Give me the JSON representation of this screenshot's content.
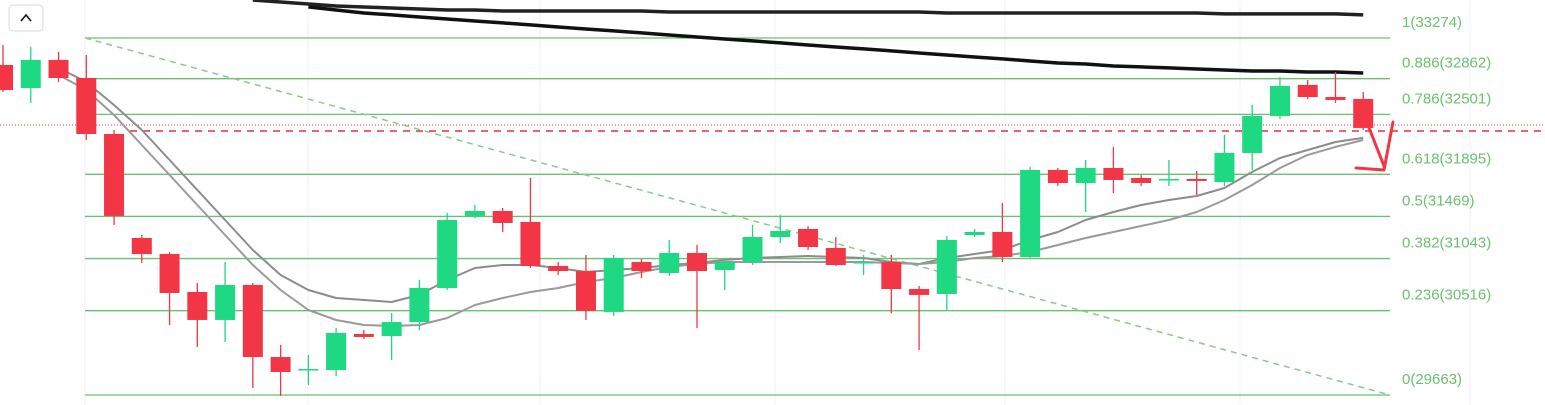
{
  "chart_data": {
    "type": "candlestick",
    "open": [
      33001,
      32768,
      33052,
      32869,
      32303,
      31251,
      31089,
      30705,
      30422,
      30776,
      30047,
      29916,
      29916,
      30280,
      30260,
      30401,
      30745,
      31474,
      31524,
      31413,
      30968,
      30917,
      30503,
      31008,
      30897,
      31099,
      30927,
      31008,
      31261,
      31342,
      31150,
      30998,
      31008,
      30735,
      30685,
      31281,
      31312,
      31059,
      31939,
      31807,
      31959,
      31858,
      31838,
      31848,
      31817,
      32111,
      32485,
      32799,
      32677,
      32657
    ],
    "high": [
      33203,
      33183,
      33132,
      33102,
      32343,
      31281,
      31109,
      30796,
      31008,
      30796,
      30169,
      30068,
      30341,
      30320,
      30492,
      30826,
      31504,
      31585,
      31555,
      31858,
      31008,
      31079,
      31079,
      31039,
      31231,
      31180,
      31049,
      31383,
      31484,
      31372,
      31261,
      31079,
      31079,
      30766,
      31271,
      31342,
      31605,
      31969,
      31959,
      32040,
      32172,
      31888,
      32040,
      31929,
      32293,
      32596,
      32880,
      32849,
      32930,
      32728
    ],
    "low": [
      32728,
      32617,
      32829,
      32242,
      31383,
      30998,
      30371,
      30149,
      30199,
      29734,
      29653,
      29764,
      29855,
      30229,
      30017,
      30320,
      30725,
      31453,
      31312,
      30948,
      30877,
      30422,
      30462,
      30846,
      30867,
      30341,
      30725,
      30978,
      31200,
      31130,
      30968,
      30877,
      30492,
      30118,
      30523,
      31261,
      31008,
      31049,
      31777,
      31514,
      31706,
      31777,
      31777,
      31686,
      31777,
      31939,
      32455,
      32657,
      32617,
      32343
    ],
    "close": [
      32748,
      33052,
      32869,
      32303,
      31474,
      31089,
      30695,
      30422,
      30776,
      30047,
      29896,
      29926,
      30290,
      30250,
      30401,
      30745,
      31433,
      31524,
      31403,
      30968,
      30917,
      30513,
      31049,
      30917,
      31099,
      30917,
      31008,
      31261,
      31322,
      31160,
      30978,
      31008,
      30735,
      30675,
      31231,
      31312,
      31059,
      31939,
      31807,
      31959,
      31838,
      31807,
      31848,
      31828,
      32111,
      32485,
      32789,
      32677,
      32647,
      32364
    ],
    "up_color": "#1ed882",
    "down_color": "#f23645",
    "lines": [
      {
        "color": "#8c8c8c",
        "values": [
          null,
          null,
          32971,
          32829,
          32596,
          32343,
          32040,
          31737,
          31433,
          31130,
          30877,
          30725,
          30644,
          30624,
          30604,
          30675,
          30826,
          30948,
          30978,
          30978,
          30948,
          30907,
          30927,
          30948,
          30978,
          30998,
          31029,
          31049,
          31059,
          31069,
          31059,
          31049,
          31008,
          30988,
          31049,
          31089,
          31130,
          31231,
          31312,
          31433,
          31514,
          31585,
          31635,
          31676,
          31757,
          31919,
          32060,
          32141,
          32222,
          32263
        ]
      },
      {
        "color": "#9a9a9a",
        "values": [
          null,
          null,
          32900,
          32748,
          32495,
          32192,
          31888,
          31585,
          31281,
          30978,
          30725,
          30523,
          30422,
          30371,
          30361,
          30371,
          30442,
          30573,
          30644,
          30705,
          30745,
          30806,
          30846,
          30907,
          30958,
          30988,
          31008,
          31008,
          31008,
          31008,
          31008,
          31008,
          30998,
          30988,
          31008,
          31049,
          31069,
          31109,
          31180,
          31251,
          31312,
          31372,
          31433,
          31514,
          31635,
          31787,
          31959,
          32091,
          32172,
          32242
        ]
      },
      {
        "color": "#111111",
        "values": [
          null,
          null,
          null,
          null,
          null,
          null,
          null,
          null,
          null,
          null,
          null,
          33588,
          33557,
          33527,
          33507,
          33486,
          33466,
          33446,
          33426,
          33406,
          33385,
          33365,
          33345,
          33325,
          33304,
          33284,
          33264,
          33244,
          33224,
          33203,
          33183,
          33163,
          33143,
          33122,
          33102,
          33082,
          33062,
          33041,
          33021,
          33011,
          32991,
          32981,
          32971,
          32960,
          32950,
          32940,
          32940,
          32930,
          32930,
          32920
        ]
      },
      {
        "color": "#222222",
        "values": [
          null,
          null,
          null,
          null,
          null,
          null,
          null,
          null,
          null,
          33658,
          33638,
          33618,
          33597,
          33587,
          33577,
          33567,
          33557,
          33557,
          33547,
          33547,
          33547,
          33547,
          33547,
          33547,
          33537,
          33537,
          33537,
          33537,
          33537,
          33537,
          33537,
          33537,
          33537,
          33537,
          33527,
          33527,
          33527,
          33527,
          33527,
          33527,
          33527,
          33527,
          33527,
          33527,
          33517,
          33517,
          33517,
          33517,
          33517,
          33507
        ]
      }
    ],
    "fib_color": "#6cc070",
    "fib_levels": [
      {
        "value": 33274,
        "label": "1(33274)"
      },
      {
        "value": 32862,
        "label": "0.886(32862)"
      },
      {
        "value": 32501,
        "label": "0.786(32501)"
      },
      {
        "value": 31895,
        "label": "0.618(31895)"
      },
      {
        "value": 31469,
        "label": "0.5(31469)"
      },
      {
        "value": 31043,
        "label": "0.382(31043)"
      },
      {
        "value": 30516,
        "label": "0.236(30516)"
      },
      {
        "value": 29663,
        "label": "0(29663)"
      }
    ],
    "ylim": [
      29562,
      33658
    ]
  }
}
